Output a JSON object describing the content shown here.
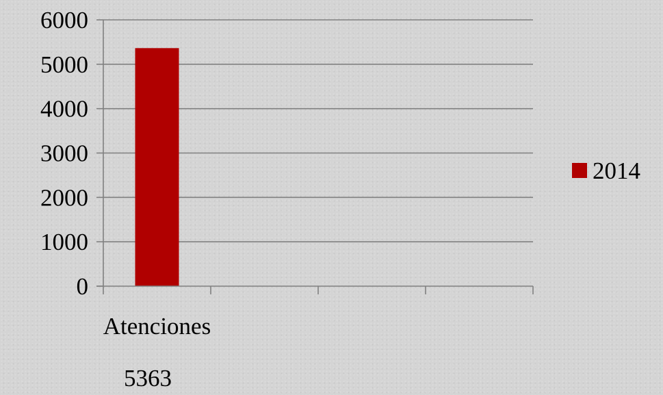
{
  "chart_data": {
    "type": "bar",
    "categories": [
      "Atenciones",
      "",
      "",
      ""
    ],
    "series": [
      {
        "name": "2014",
        "values": [
          5363,
          null,
          null,
          null
        ],
        "color": "#b00000"
      }
    ],
    "ylim": [
      0,
      6000
    ],
    "yticks": [
      0,
      1000,
      2000,
      3000,
      4000,
      5000,
      6000
    ],
    "grid": true,
    "legend": "right"
  },
  "caption": "5363"
}
